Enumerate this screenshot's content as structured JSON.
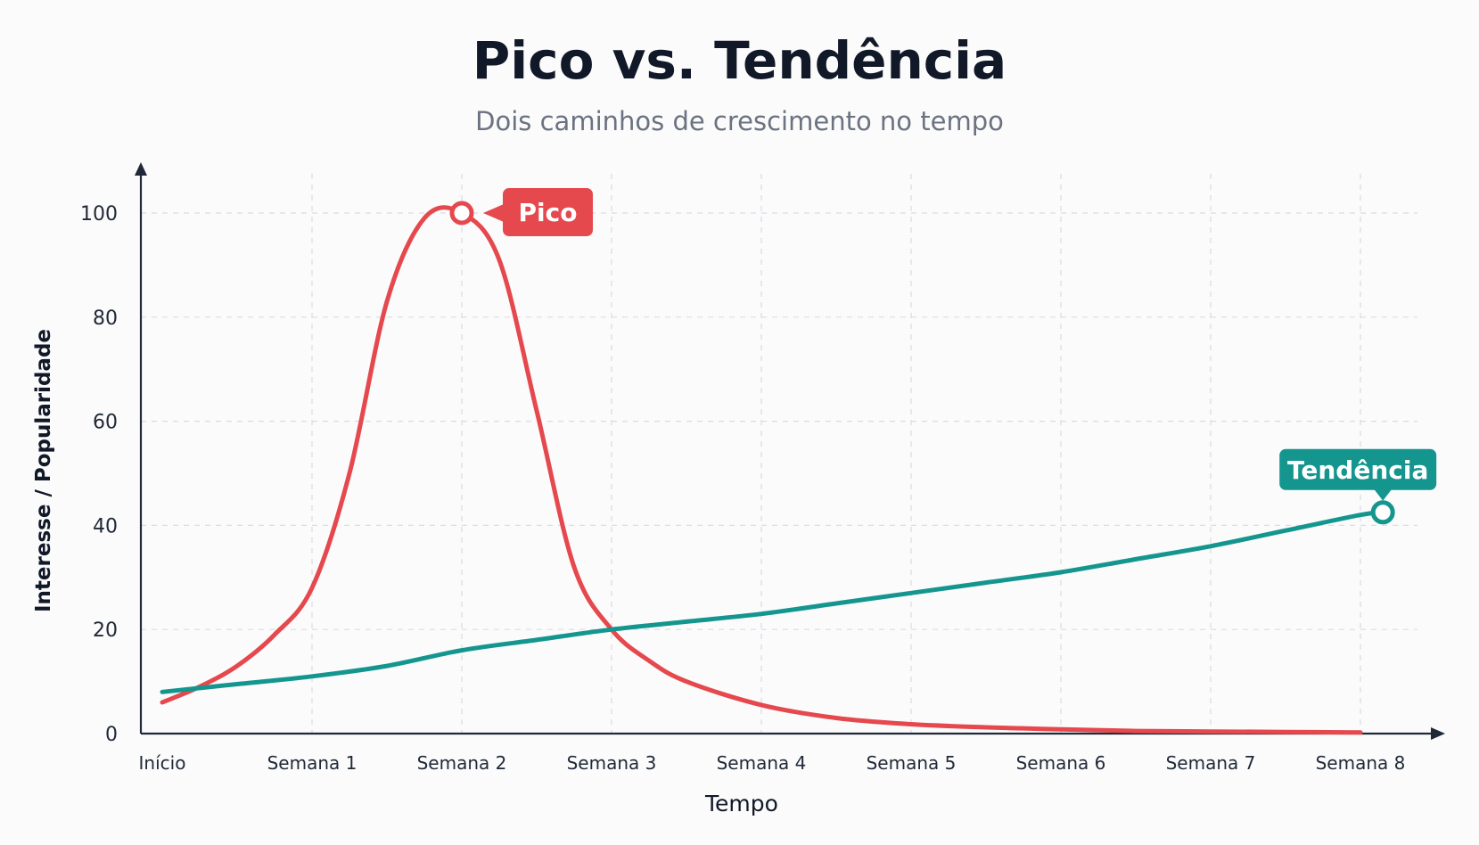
{
  "chart_data": {
    "type": "line",
    "title": "Pico vs. Tendência",
    "subtitle": "Dois caminhos de crescimento no tempo",
    "xlabel": "Tempo",
    "ylabel": "Interesse / Popularidade",
    "categories": [
      "Início",
      "Semana 1",
      "Semana 2",
      "Semana 3",
      "Semana 4",
      "Semana 5",
      "Semana 6",
      "Semana 7",
      "Semana 8"
    ],
    "yticks": [
      0,
      20,
      40,
      60,
      80,
      100
    ],
    "ylim": [
      0,
      108
    ],
    "grid": true,
    "series": [
      {
        "name": "Pico",
        "color": "#e5484d",
        "points": [
          [
            0,
            6
          ],
          [
            0.25,
            9
          ],
          [
            0.5,
            13
          ],
          [
            0.75,
            19
          ],
          [
            1.0,
            28
          ],
          [
            1.25,
            50
          ],
          [
            1.5,
            83
          ],
          [
            1.75,
            99
          ],
          [
            2.0,
            100
          ],
          [
            2.25,
            91
          ],
          [
            2.5,
            62
          ],
          [
            2.75,
            32
          ],
          [
            3.0,
            20
          ],
          [
            3.25,
            14
          ],
          [
            3.5,
            10
          ],
          [
            4.0,
            5.5
          ],
          [
            4.5,
            3
          ],
          [
            5.0,
            1.8
          ],
          [
            5.5,
            1.2
          ],
          [
            6.0,
            0.8
          ],
          [
            6.5,
            0.5
          ],
          [
            7.0,
            0.4
          ],
          [
            7.5,
            0.3
          ],
          [
            8.0,
            0.2
          ]
        ],
        "callout": {
          "label": "Pico",
          "x": 2.0,
          "y": 100
        }
      },
      {
        "name": "Tendência",
        "color": "#14968f",
        "points": [
          [
            0,
            8
          ],
          [
            0.5,
            9.5
          ],
          [
            1.0,
            11
          ],
          [
            1.5,
            13
          ],
          [
            2.0,
            16
          ],
          [
            2.5,
            18
          ],
          [
            3.0,
            20
          ],
          [
            3.5,
            21.5
          ],
          [
            4.0,
            23
          ],
          [
            4.5,
            25
          ],
          [
            5.0,
            27
          ],
          [
            5.5,
            29
          ],
          [
            6.0,
            31
          ],
          [
            6.5,
            33.5
          ],
          [
            7.0,
            36
          ],
          [
            7.5,
            39
          ],
          [
            8.0,
            42
          ],
          [
            8.15,
            42.5
          ]
        ],
        "callout": {
          "label": "Tendência",
          "x": 8.15,
          "y": 42.5
        }
      }
    ]
  }
}
